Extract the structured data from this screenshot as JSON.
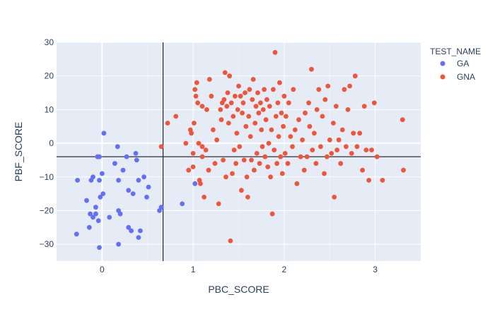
{
  "chart_data": {
    "type": "scatter",
    "title": "",
    "xlabel": "PBC_SCORE",
    "ylabel": "PBF_SCORE",
    "xlim": [
      -0.5,
      3.5
    ],
    "ylim": [
      -35,
      30
    ],
    "xticks": [
      0,
      1,
      2,
      3
    ],
    "yticks": [
      -30,
      -20,
      -10,
      0,
      10,
      20,
      30
    ],
    "grid": true,
    "legend_title": "TEST_NAME",
    "legend_position": "top-right",
    "reference_lines": {
      "vertical_x": 0.67,
      "horizontal_y": -4
    },
    "series": [
      {
        "name": "GA",
        "color": "#636efa",
        "points": [
          [
            -0.28,
            -27
          ],
          [
            -0.27,
            -11
          ],
          [
            -0.17,
            -17
          ],
          [
            -0.14,
            -25
          ],
          [
            -0.13,
            -21
          ],
          [
            -0.12,
            -11
          ],
          [
            -0.1,
            -22
          ],
          [
            -0.1,
            -10
          ],
          [
            -0.07,
            -19
          ],
          [
            -0.07,
            -21
          ],
          [
            -0.05,
            -4
          ],
          [
            -0.04,
            -23
          ],
          [
            -0.03,
            -4
          ],
          [
            -0.03,
            -11
          ],
          [
            -0.03,
            -31
          ],
          [
            -0.02,
            -16
          ],
          [
            0.0,
            -9
          ],
          [
            0.01,
            -15
          ],
          [
            0.02,
            3
          ],
          [
            0.08,
            -22
          ],
          [
            0.14,
            -6
          ],
          [
            0.17,
            -1
          ],
          [
            0.18,
            -11
          ],
          [
            0.18,
            -20
          ],
          [
            0.18,
            -30
          ],
          [
            0.2,
            -21
          ],
          [
            0.23,
            -8
          ],
          [
            0.27,
            -4
          ],
          [
            0.29,
            -14
          ],
          [
            0.29,
            -25
          ],
          [
            0.32,
            -26
          ],
          [
            0.34,
            -15
          ],
          [
            0.37,
            -3
          ],
          [
            0.38,
            -5
          ],
          [
            0.4,
            -11
          ],
          [
            0.4,
            -28
          ],
          [
            0.42,
            -26
          ],
          [
            0.46,
            -10
          ],
          [
            0.49,
            -16
          ],
          [
            0.51,
            -13
          ],
          [
            0.63,
            -20
          ],
          [
            0.65,
            -19
          ],
          [
            0.88,
            -18
          ],
          [
            1.02,
            -12
          ]
        ]
      },
      {
        "name": "GNA",
        "color": "#ef553b",
        "points": [
          [
            0.65,
            -1
          ],
          [
            0.72,
            6
          ],
          [
            0.81,
            8
          ],
          [
            0.92,
            0
          ],
          [
            0.95,
            -8
          ],
          [
            0.97,
            4
          ],
          [
            0.98,
            3
          ],
          [
            1.0,
            -3
          ],
          [
            1.0,
            -7
          ],
          [
            1.01,
            6
          ],
          [
            1.02,
            16
          ],
          [
            1.03,
            14
          ],
          [
            1.04,
            18
          ],
          [
            1.05,
            12
          ],
          [
            1.06,
            0
          ],
          [
            1.07,
            -11
          ],
          [
            1.08,
            -12
          ],
          [
            1.1,
            -1
          ],
          [
            1.1,
            11
          ],
          [
            1.1,
            -4
          ],
          [
            1.12,
            -16
          ],
          [
            1.14,
            -2
          ],
          [
            1.15,
            10
          ],
          [
            1.17,
            -8
          ],
          [
            1.18,
            19
          ],
          [
            1.2,
            14
          ],
          [
            1.22,
            4
          ],
          [
            1.24,
            -6
          ],
          [
            1.26,
            1
          ],
          [
            1.28,
            -18
          ],
          [
            1.3,
            10
          ],
          [
            1.31,
            7
          ],
          [
            1.32,
            12
          ],
          [
            1.33,
            -5
          ],
          [
            1.34,
            13
          ],
          [
            1.35,
            21
          ],
          [
            1.36,
            -10
          ],
          [
            1.37,
            11
          ],
          [
            1.38,
            15
          ],
          [
            1.39,
            6
          ],
          [
            1.4,
            20
          ],
          [
            1.41,
            -29
          ],
          [
            1.42,
            12
          ],
          [
            1.43,
            -9
          ],
          [
            1.44,
            8
          ],
          [
            1.45,
            -2
          ],
          [
            1.46,
            14
          ],
          [
            1.47,
            -6
          ],
          [
            1.48,
            3
          ],
          [
            1.49,
            10
          ],
          [
            1.5,
            17
          ],
          [
            1.51,
            -1
          ],
          [
            1.52,
            14
          ],
          [
            1.53,
            -14
          ],
          [
            1.54,
            9
          ],
          [
            1.55,
            12
          ],
          [
            1.56,
            -5
          ],
          [
            1.57,
            15
          ],
          [
            1.58,
            5
          ],
          [
            1.59,
            -10
          ],
          [
            1.6,
            -16
          ],
          [
            1.61,
            8
          ],
          [
            1.62,
            16
          ],
          [
            1.63,
            2
          ],
          [
            1.64,
            -5
          ],
          [
            1.65,
            13
          ],
          [
            1.66,
            19
          ],
          [
            1.67,
            -8
          ],
          [
            1.68,
            6
          ],
          [
            1.69,
            11
          ],
          [
            1.7,
            -3
          ],
          [
            1.71,
            15
          ],
          [
            1.72,
            9
          ],
          [
            1.73,
            -6
          ],
          [
            1.74,
            12
          ],
          [
            1.75,
            4
          ],
          [
            1.76,
            -1
          ],
          [
            1.77,
            10
          ],
          [
            1.78,
            16
          ],
          [
            1.79,
            -4
          ],
          [
            1.8,
            7
          ],
          [
            1.81,
            13
          ],
          [
            1.82,
            -7
          ],
          [
            1.83,
            0
          ],
          [
            1.84,
            11
          ],
          [
            1.85,
            -10
          ],
          [
            1.86,
            4
          ],
          [
            1.87,
            -21
          ],
          [
            1.88,
            16
          ],
          [
            1.89,
            -2
          ],
          [
            1.9,
            27
          ],
          [
            1.91,
            8
          ],
          [
            1.92,
            -6
          ],
          [
            1.93,
            12
          ],
          [
            1.94,
            2
          ],
          [
            1.95,
            18
          ],
          [
            1.96,
            -4
          ],
          [
            1.97,
            9
          ],
          [
            1.98,
            -9
          ],
          [
            1.99,
            5
          ],
          [
            2.0,
            14
          ],
          [
            2.01,
            -3
          ],
          [
            2.02,
            8
          ],
          [
            2.04,
            -6
          ],
          [
            2.05,
            12
          ],
          [
            2.07,
            2
          ],
          [
            2.09,
            -1
          ],
          [
            2.1,
            16
          ],
          [
            2.12,
            4
          ],
          [
            2.14,
            -12
          ],
          [
            2.16,
            7
          ],
          [
            2.18,
            -4
          ],
          [
            2.2,
            1
          ],
          [
            2.22,
            -8
          ],
          [
            2.23,
            9
          ],
          [
            2.25,
            -4
          ],
          [
            2.27,
            12
          ],
          [
            2.28,
            5
          ],
          [
            2.3,
            22
          ],
          [
            2.31,
            -2
          ],
          [
            2.33,
            3
          ],
          [
            2.35,
            -6
          ],
          [
            2.36,
            10
          ],
          [
            2.38,
            16
          ],
          [
            2.4,
            -1
          ],
          [
            2.42,
            8
          ],
          [
            2.44,
            -9
          ],
          [
            2.45,
            13
          ],
          [
            2.47,
            -4
          ],
          [
            2.48,
            17
          ],
          [
            2.5,
            1
          ],
          [
            2.52,
            -3
          ],
          [
            2.54,
            6
          ],
          [
            2.55,
            -16
          ],
          [
            2.57,
            11
          ],
          [
            2.58,
            -2
          ],
          [
            2.6,
            1
          ],
          [
            2.62,
            -6
          ],
          [
            2.64,
            4
          ],
          [
            2.66,
            16
          ],
          [
            2.68,
            -1
          ],
          [
            2.7,
            10
          ],
          [
            2.72,
            17
          ],
          [
            2.74,
            -3
          ],
          [
            2.76,
            3
          ],
          [
            2.78,
            20
          ],
          [
            2.8,
            -1
          ],
          [
            2.83,
            3
          ],
          [
            2.86,
            -8
          ],
          [
            2.88,
            11
          ],
          [
            2.9,
            -2
          ],
          [
            2.93,
            -11
          ],
          [
            2.96,
            -2
          ],
          [
            2.99,
            12
          ],
          [
            3.02,
            -4
          ],
          [
            3.08,
            -11
          ],
          [
            3.3,
            7
          ],
          [
            3.31,
            -8
          ]
        ]
      }
    ]
  }
}
